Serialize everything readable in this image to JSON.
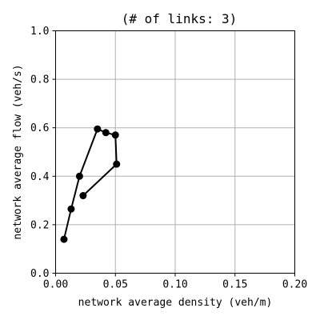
{
  "chart_data": {
    "type": "line",
    "title": "(# of links: 3)",
    "xlabel": "network average density (veh/m)",
    "ylabel": "network average flow (veh/s)",
    "xlim": [
      0.0,
      0.2
    ],
    "ylim": [
      0.0,
      1.0
    ],
    "xticks": [
      0.0,
      0.05,
      0.1,
      0.15,
      0.2
    ],
    "xtick_labels": [
      "0.00",
      "0.05",
      "0.10",
      "0.15",
      "0.20"
    ],
    "yticks": [
      0.0,
      0.2,
      0.4,
      0.6,
      0.8,
      1.0
    ],
    "ytick_labels": [
      "0.0",
      "0.2",
      "0.4",
      "0.6",
      "0.8",
      "1.0"
    ],
    "grid": true,
    "series": [
      {
        "color": "#000000",
        "marker": "circle",
        "x": [
          0.007,
          0.013,
          0.02,
          0.035,
          0.042,
          0.05,
          0.051,
          0.023
        ],
        "y": [
          0.14,
          0.265,
          0.4,
          0.595,
          0.58,
          0.57,
          0.45,
          0.32
        ]
      }
    ]
  }
}
